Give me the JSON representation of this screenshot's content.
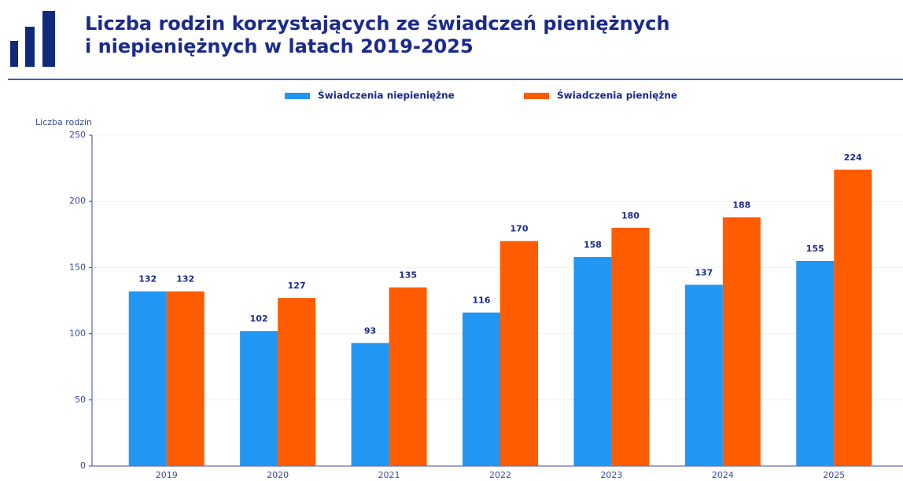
{
  "chart_data": {
    "type": "bar",
    "title": [
      "Liczba rodzin korzystających ze świadczeń pieniężnych",
      "i niepieniężnych w latach 2019-2025"
    ],
    "y_label": "Liczba rodzin",
    "categories": [
      "2019",
      "2020",
      "2021",
      "2022",
      "2023",
      "2024",
      "2025"
    ],
    "series": [
      {
        "name": "Świadczenia niepieniężne",
        "color": "#2196f3",
        "values": [
          132,
          102,
          93,
          116,
          158,
          137,
          155
        ]
      },
      {
        "name": "Świadczenia pieniężne",
        "color": "#ff5c00",
        "values": [
          132,
          127,
          135,
          170,
          180,
          188,
          224
        ]
      }
    ],
    "ylim": [
      0,
      250
    ],
    "yticks": [
      0,
      50,
      100,
      150,
      200,
      250
    ],
    "grid": true,
    "legend": "top"
  }
}
